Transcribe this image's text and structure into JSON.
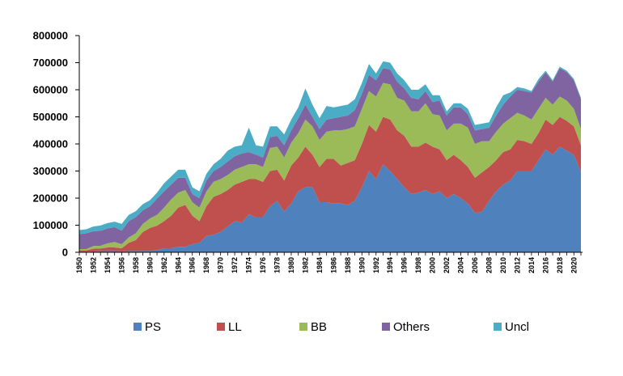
{
  "chart_data": {
    "type": "area",
    "stacked": true,
    "title": "",
    "xlabel": "",
    "ylabel": "",
    "ylim": [
      0,
      800000
    ],
    "yticks": [
      0,
      100000,
      200000,
      300000,
      400000,
      500000,
      600000,
      700000,
      800000
    ],
    "ytick_labels": [
      "0",
      "100000",
      "200000",
      "300000",
      "400000",
      "500000",
      "600000",
      "700000",
      "800000"
    ],
    "xticks": [
      1950,
      1952,
      1954,
      1956,
      1958,
      1960,
      1962,
      1964,
      1966,
      1968,
      1970,
      1972,
      1974,
      1976,
      1978,
      1980,
      1982,
      1984,
      1986,
      1988,
      1990,
      1992,
      1994,
      1996,
      1998,
      2000,
      2002,
      2004,
      2006,
      2008,
      2010,
      2012,
      2014,
      2016,
      2018,
      2020
    ],
    "x": [
      1950,
      1951,
      1952,
      1953,
      1954,
      1955,
      1956,
      1957,
      1958,
      1959,
      1960,
      1961,
      1962,
      1963,
      1964,
      1965,
      1966,
      1967,
      1968,
      1969,
      1970,
      1971,
      1972,
      1973,
      1974,
      1975,
      1976,
      1977,
      1978,
      1979,
      1980,
      1981,
      1982,
      1983,
      1984,
      1985,
      1986,
      1987,
      1988,
      1989,
      1990,
      1991,
      1992,
      1993,
      1994,
      1995,
      1996,
      1997,
      1998,
      1999,
      2000,
      2001,
      2002,
      2003,
      2004,
      2005,
      2006,
      2007,
      2008,
      2009,
      2010,
      2011,
      2012,
      2013,
      2014,
      2015,
      2016,
      2017,
      2018,
      2019,
      2020,
      2021
    ],
    "grid": false,
    "legend_position": "bottom",
    "series": [
      {
        "name": "PS",
        "color": "#4f81bd",
        "values": [
          2000,
          2000,
          3000,
          4000,
          5000,
          5000,
          3000,
          5000,
          5000,
          5000,
          5000,
          8000,
          15000,
          15000,
          20000,
          20000,
          30000,
          35000,
          60000,
          65000,
          75000,
          95000,
          115000,
          110000,
          140000,
          130000,
          130000,
          170000,
          190000,
          150000,
          180000,
          225000,
          240000,
          240000,
          185000,
          185000,
          180000,
          180000,
          175000,
          190000,
          240000,
          300000,
          270000,
          325000,
          300000,
          270000,
          240000,
          215000,
          220000,
          230000,
          215000,
          225000,
          200000,
          215000,
          200000,
          180000,
          145000,
          150000,
          190000,
          225000,
          250000,
          265000,
          300000,
          300000,
          300000,
          340000,
          380000,
          360000,
          390000,
          375000,
          360000,
          295000
        ]
      },
      {
        "name": "LL",
        "color": "#c0504d",
        "values": [
          5000,
          5000,
          10000,
          10000,
          13000,
          13000,
          12000,
          30000,
          40000,
          70000,
          85000,
          90000,
          100000,
          120000,
          145000,
          155000,
          105000,
          80000,
          110000,
          140000,
          140000,
          135000,
          135000,
          150000,
          130000,
          140000,
          130000,
          130000,
          115000,
          115000,
          140000,
          125000,
          150000,
          120000,
          130000,
          160000,
          165000,
          140000,
          155000,
          150000,
          160000,
          170000,
          175000,
          175000,
          190000,
          180000,
          190000,
          175000,
          170000,
          175000,
          175000,
          155000,
          140000,
          145000,
          140000,
          135000,
          130000,
          145000,
          125000,
          115000,
          120000,
          115000,
          115000,
          110000,
          100000,
          100000,
          110000,
          110000,
          110000,
          110000,
          105000,
          100000
        ]
      },
      {
        "name": "BB",
        "color": "#9bbb59",
        "values": [
          5000,
          5000,
          10000,
          10000,
          15000,
          20000,
          15000,
          20000,
          25000,
          30000,
          35000,
          40000,
          50000,
          60000,
          55000,
          55000,
          50000,
          50000,
          55000,
          55000,
          55000,
          55000,
          55000,
          55000,
          55000,
          55000,
          55000,
          85000,
          85000,
          85000,
          85000,
          90000,
          100000,
          105000,
          100000,
          100000,
          105000,
          130000,
          125000,
          125000,
          130000,
          125000,
          130000,
          125000,
          130000,
          120000,
          130000,
          130000,
          130000,
          145000,
          120000,
          125000,
          110000,
          115000,
          135000,
          145000,
          125000,
          115000,
          95000,
          105000,
          105000,
          115000,
          100000,
          95000,
          90000,
          90000,
          80000,
          75000,
          75000,
          75000,
          65000,
          60000
        ]
      },
      {
        "name": "Others",
        "color": "#8064a2",
        "values": [
          55000,
          58000,
          55000,
          55000,
          55000,
          55000,
          50000,
          60000,
          60000,
          50000,
          45000,
          60000,
          60000,
          55000,
          55000,
          45000,
          30000,
          35000,
          40000,
          40000,
          45000,
          50000,
          50000,
          50000,
          45000,
          35000,
          35000,
          40000,
          40000,
          45000,
          45000,
          55000,
          55000,
          35000,
          40000,
          45000,
          45000,
          50000,
          50000,
          60000,
          55000,
          60000,
          60000,
          55000,
          55000,
          60000,
          45000,
          50000,
          45000,
          45000,
          45000,
          55000,
          55000,
          60000,
          60000,
          50000,
          50000,
          45000,
          50000,
          60000,
          70000,
          80000,
          85000,
          90000,
          100000,
          100000,
          95000,
          85000,
          105000,
          105000,
          105000,
          110000
        ]
      },
      {
        "name": "Uncl",
        "color": "#4bacc6",
        "values": [
          15000,
          15000,
          17000,
          20000,
          20000,
          20000,
          25000,
          23000,
          22000,
          23000,
          22000,
          22000,
          30000,
          30000,
          30000,
          30000,
          25000,
          25000,
          25000,
          25000,
          30000,
          40000,
          35000,
          30000,
          90000,
          35000,
          40000,
          40000,
          35000,
          40000,
          40000,
          40000,
          60000,
          45000,
          40000,
          50000,
          40000,
          40000,
          40000,
          40000,
          40000,
          40000,
          25000,
          25000,
          25000,
          30000,
          30000,
          30000,
          35000,
          25000,
          25000,
          20000,
          15000,
          15000,
          15000,
          20000,
          20000,
          20000,
          20000,
          30000,
          35000,
          15000,
          10000,
          10000,
          5000,
          10000,
          5000,
          5000,
          5000,
          5000,
          5000,
          5000
        ]
      }
    ]
  }
}
